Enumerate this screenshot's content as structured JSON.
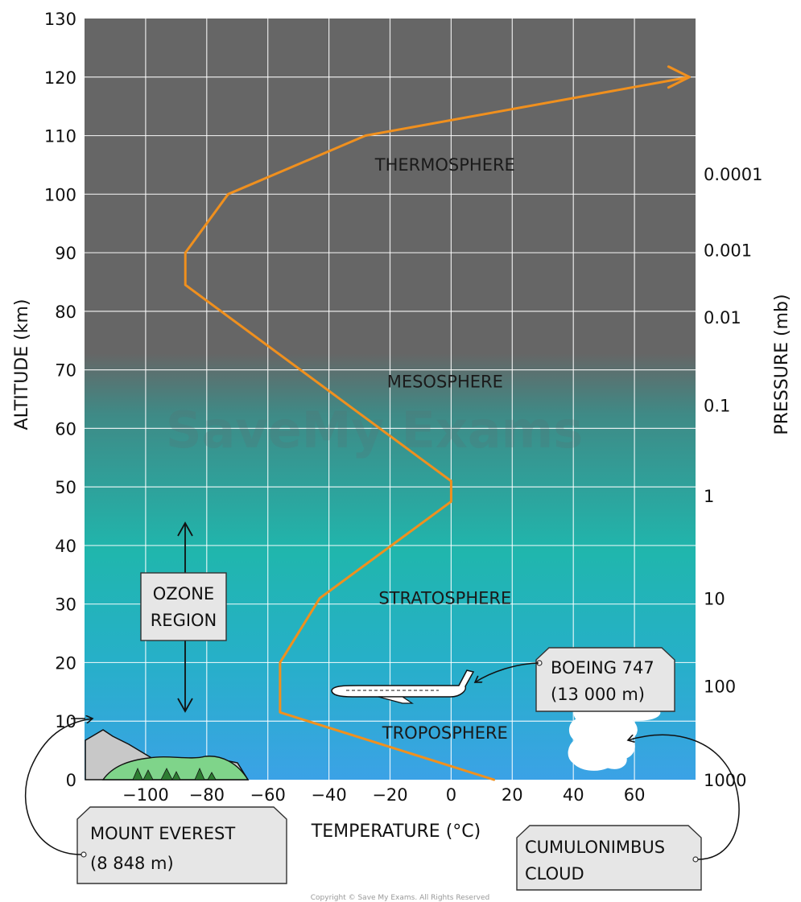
{
  "chart_data": {
    "type": "line",
    "xlabel": "TEMPERATURE (°C)",
    "ylabel": "ALTITUDE (km)",
    "y2label": "PRESSURE (mb)",
    "xlim": [
      -120,
      80
    ],
    "ylim": [
      0,
      130
    ],
    "x_ticks": [
      -100,
      -80,
      -60,
      -40,
      -20,
      0,
      20,
      40,
      60
    ],
    "x_tick_labels": [
      "−100",
      "−80",
      "−60",
      "−40",
      "−20",
      "0",
      "20",
      "40",
      "60"
    ],
    "y_ticks": [
      0,
      10,
      20,
      30,
      40,
      50,
      60,
      70,
      80,
      90,
      100,
      110,
      120,
      130
    ],
    "pressure_ticks": [
      {
        "label": "0.0001",
        "altitude": 103.5
      },
      {
        "label": "0.001",
        "altitude": 90.5
      },
      {
        "label": "0.01",
        "altitude": 79
      },
      {
        "label": "0.1",
        "altitude": 64
      },
      {
        "label": "1",
        "altitude": 48.5
      },
      {
        "label": "10",
        "altitude": 31
      },
      {
        "label": "100",
        "altitude": 16
      },
      {
        "label": "1000",
        "altitude": 0
      }
    ],
    "grid": true,
    "series": [
      {
        "color": "#f0901e",
        "x": [
          14,
          -56,
          -56,
          -43,
          0,
          0,
          -87,
          -87,
          -73,
          -28,
          78
        ],
        "y": [
          0,
          11.5,
          20,
          31,
          47.5,
          51,
          84.5,
          90,
          100,
          110,
          120
        ]
      }
    ],
    "layers": [
      {
        "label": "THERMOSPHERE",
        "x": -2,
        "y": 104
      },
      {
        "label": "MESOSPHERE",
        "x": -2,
        "y": 67
      },
      {
        "label": "STRATOSPHERE",
        "x": -2,
        "y": 30
      },
      {
        "label": "TROPOSPHERE",
        "x": -2,
        "y": 7
      }
    ]
  },
  "annotations": {
    "ozone_line1": "OZONE",
    "ozone_line2": "REGION",
    "boeing_line1": "BOEING 747",
    "boeing_line2": "(13 000 m)",
    "everest_line1": "MOUNT EVEREST",
    "everest_line2": "(8 848 m)",
    "cloud_line1": "CUMULONIMBUS",
    "cloud_line2": "CLOUD"
  },
  "watermark": "SaveMy Exams",
  "copyright": "Copyright © Save My Exams. All Rights Reserved",
  "colors": {
    "upper_atmosphere": "#666666",
    "mid_atmosphere": "#20b6ad",
    "lower_atmosphere": "#3ba2e6",
    "temperature_line": "#f0901e",
    "grid": "#ffffff",
    "label_box": "#e6e6e6",
    "mountain": "#c8c8c8",
    "hills": "#7fd48a"
  }
}
